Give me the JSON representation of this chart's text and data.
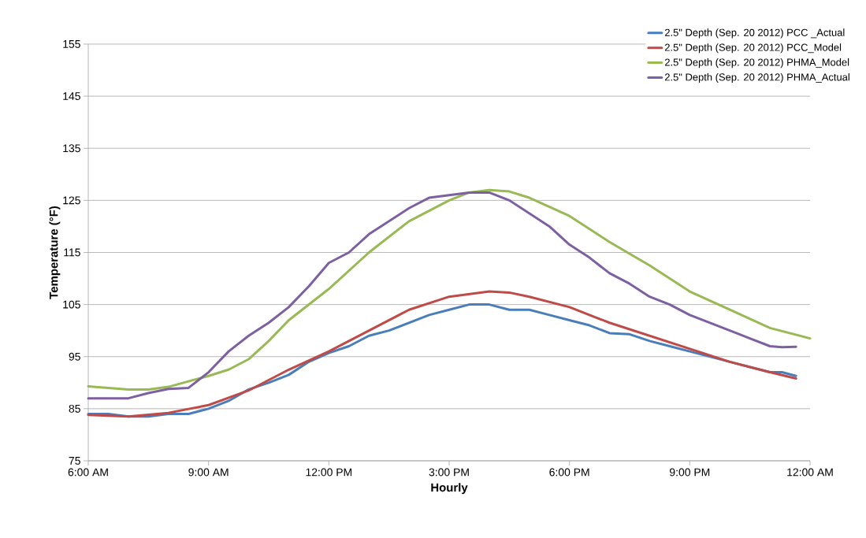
{
  "chart_data": {
    "type": "line",
    "xlabel": "Hourly",
    "ylabel": "Temperature (°F)",
    "xlim": [
      6,
      24
    ],
    "xticks": [
      {
        "value": 6,
        "label": "6:00 AM"
      },
      {
        "value": 9,
        "label": "9:00 AM"
      },
      {
        "value": 12,
        "label": "12:00 PM"
      },
      {
        "value": 15,
        "label": "3:00 PM"
      },
      {
        "value": 18,
        "label": "6:00 PM"
      },
      {
        "value": 21,
        "label": "9:00 PM"
      },
      {
        "value": 24,
        "label": "12:00 AM"
      }
    ],
    "ylim": [
      75,
      155
    ],
    "yticks": [
      75,
      85,
      95,
      105,
      115,
      125,
      135,
      145,
      155
    ],
    "grid": "y",
    "legend": "top right",
    "marker": "none",
    "line_style": "solid",
    "series": [
      {
        "name": "2.5\" Depth  (Sep. 20 2012) PCC _Actual",
        "color": "#4a7ebb",
        "x": [
          6,
          6.5,
          7,
          7.5,
          8,
          8.5,
          9,
          9.5,
          10,
          10.5,
          11,
          11.5,
          12,
          12.5,
          13,
          13.5,
          14,
          14.5,
          15,
          15.5,
          16,
          16.5,
          17,
          17.5,
          18,
          18.5,
          19,
          19.5,
          20,
          20.5,
          21,
          21.5,
          22,
          22.5,
          23,
          23.3,
          23.65
        ],
        "values": [
          84,
          84,
          83.5,
          83.5,
          84,
          84,
          85,
          86.5,
          88.7,
          90,
          91.5,
          94,
          95.7,
          97,
          99,
          100,
          101.5,
          103,
          104,
          105,
          105,
          104,
          104,
          103,
          102,
          101,
          99.5,
          99.3,
          98,
          97,
          96,
          95,
          94,
          93,
          92,
          92,
          91.3
        ]
      },
      {
        "name": "2.5\" Depth  (Sep. 20 2012) PCC_Model",
        "color": "#be4b48",
        "x": [
          6,
          7,
          8,
          9,
          10,
          11,
          12,
          13,
          14,
          15,
          16,
          16.5,
          17,
          18,
          19,
          20,
          21,
          22,
          23,
          23.65
        ],
        "values": [
          83.8,
          83.5,
          84.2,
          85.7,
          88.5,
          92.5,
          96,
          100,
          104,
          106.5,
          107.5,
          107.3,
          106.5,
          104.5,
          101.5,
          99,
          96.5,
          94,
          92,
          90.8
        ]
      },
      {
        "name": "2.5\" Depth  (Sep. 20 2012) PHMA_Model",
        "color": "#98b954",
        "x": [
          6,
          7,
          7.5,
          8,
          9,
          9.5,
          10,
          10.5,
          11,
          12,
          13,
          14,
          15,
          15.5,
          16,
          16.5,
          17,
          18,
          19,
          20,
          21,
          22,
          23,
          24
        ],
        "values": [
          89.3,
          88.7,
          88.7,
          89.2,
          91.3,
          92.5,
          94.5,
          98,
          102,
          108,
          115,
          121,
          125,
          126.5,
          127,
          126.7,
          125.5,
          122,
          117,
          112.5,
          107.5,
          104,
          100.5,
          98.5
        ]
      },
      {
        "name": "2.5\" Depth  (Sep. 20 2012) PHMA_Actual",
        "color": "#7d60a0",
        "x": [
          6,
          7,
          7.5,
          8,
          8.5,
          9,
          9.5,
          10,
          10.5,
          11,
          11.5,
          12,
          12.5,
          13,
          13.5,
          14,
          14.5,
          15,
          15.5,
          16,
          16.5,
          17,
          17.5,
          18,
          18.5,
          19,
          19.5,
          20,
          20.5,
          21,
          21.5,
          22,
          22.5,
          23,
          23.3,
          23.65
        ],
        "values": [
          87,
          87,
          88,
          88.8,
          89,
          92,
          96,
          99,
          101.5,
          104.5,
          108.5,
          113,
          115,
          118.5,
          121,
          123.5,
          125.5,
          126,
          126.5,
          126.5,
          125,
          122.5,
          120,
          116.5,
          114,
          111,
          109,
          106.5,
          105,
          103,
          101.5,
          100,
          98.5,
          97,
          96.8,
          96.9
        ]
      }
    ]
  }
}
